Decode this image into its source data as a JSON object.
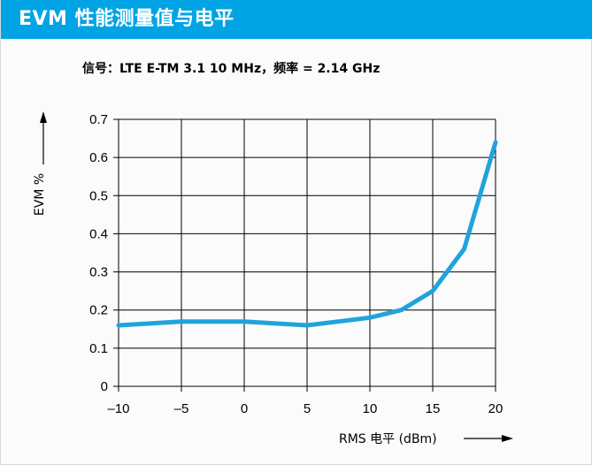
{
  "header": {
    "title": "EVM 性能测量值与电平"
  },
  "colors": {
    "header_bg": "#00a4e4",
    "line": "#1fa3dc",
    "grid": "#000000"
  },
  "chart_data": {
    "type": "line",
    "subtitle": "信号：LTE E-TM 3.1 10 MHz，频率 = 2.14 GHz",
    "xlabel": "RMS 电平 (dBm)",
    "ylabel": "EVM %",
    "xlim": [
      -10,
      20
    ],
    "ylim": [
      0,
      0.7
    ],
    "x_ticks": [
      -10,
      -5,
      0,
      5,
      10,
      15,
      20
    ],
    "x_tick_labels": [
      "–10",
      "–5",
      "0",
      "5",
      "10",
      "15",
      "20"
    ],
    "y_ticks": [
      0,
      0.1,
      0.2,
      0.3,
      0.4,
      0.5,
      0.6,
      0.7
    ],
    "y_tick_labels": [
      "0",
      "0.1",
      "0.2",
      "0.3",
      "0.4",
      "0.5",
      "0.6",
      "0.7"
    ],
    "grid": true,
    "series": [
      {
        "x": [
          -10,
          -5,
          0,
          5,
          10,
          12.5,
          15,
          17.5,
          20
        ],
        "y": [
          0.16,
          0.17,
          0.17,
          0.16,
          0.18,
          0.2,
          0.25,
          0.36,
          0.64
        ]
      }
    ]
  }
}
